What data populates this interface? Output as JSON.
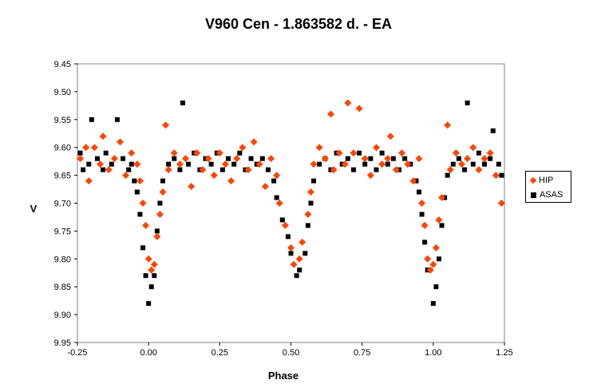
{
  "chart_data": {
    "type": "scatter",
    "title": "V960 Cen - 1.863582 d. - EA",
    "xlabel": "Phase",
    "ylabel": "V",
    "xlim": [
      -0.25,
      1.25
    ],
    "ylim": [
      9.45,
      9.95
    ],
    "y_inverted": true,
    "x_ticks": [
      "-0.25",
      "0.00",
      "0.25",
      "0.50",
      "0.75",
      "1.00",
      "1.25"
    ],
    "y_ticks": [
      "9.45",
      "9.50",
      "9.55",
      "9.60",
      "9.65",
      "9.70",
      "9.75",
      "9.80",
      "9.85",
      "9.90",
      "9.95"
    ],
    "grid": false,
    "legend_position": "right",
    "series": [
      {
        "name": "HIP",
        "marker": "diamond",
        "color": "#FF4500",
        "points": [
          [
            -0.24,
            9.62
          ],
          [
            -0.22,
            9.6
          ],
          [
            -0.21,
            9.66
          ],
          [
            -0.19,
            9.6
          ],
          [
            -0.17,
            9.63
          ],
          [
            -0.16,
            9.58
          ],
          [
            -0.14,
            9.64
          ],
          [
            -0.12,
            9.62
          ],
          [
            -0.1,
            9.59
          ],
          [
            -0.08,
            9.65
          ],
          [
            -0.06,
            9.61
          ],
          [
            -0.04,
            9.63
          ],
          [
            -0.03,
            9.66
          ],
          [
            -0.02,
            9.7
          ],
          [
            -0.01,
            9.74
          ],
          [
            0.0,
            9.8
          ],
          [
            0.01,
            9.82
          ],
          [
            0.02,
            9.81
          ],
          [
            0.03,
            9.76
          ],
          [
            0.04,
            9.72
          ],
          [
            0.05,
            9.68
          ],
          [
            0.06,
            9.56
          ],
          [
            0.07,
            9.64
          ],
          [
            0.09,
            9.61
          ],
          [
            0.11,
            9.63
          ],
          [
            0.13,
            9.62
          ],
          [
            0.15,
            9.67
          ],
          [
            0.17,
            9.61
          ],
          [
            0.19,
            9.64
          ],
          [
            0.21,
            9.62
          ],
          [
            0.23,
            9.65
          ],
          [
            0.25,
            9.61
          ],
          [
            0.27,
            9.63
          ],
          [
            0.29,
            9.66
          ],
          [
            0.31,
            9.62
          ],
          [
            0.33,
            9.6
          ],
          [
            0.35,
            9.64
          ],
          [
            0.37,
            9.59
          ],
          [
            0.39,
            9.63
          ],
          [
            0.41,
            9.67
          ],
          [
            0.43,
            9.62
          ],
          [
            0.45,
            9.65
          ],
          [
            0.46,
            9.7
          ],
          [
            0.48,
            9.74
          ],
          [
            0.5,
            9.78
          ],
          [
            0.51,
            9.81
          ],
          [
            0.53,
            9.8
          ],
          [
            0.54,
            9.77
          ],
          [
            0.56,
            9.72
          ],
          [
            0.57,
            9.68
          ],
          [
            0.58,
            9.63
          ],
          [
            0.6,
            9.6
          ],
          [
            0.62,
            9.62
          ],
          [
            0.64,
            9.54
          ],
          [
            0.65,
            9.64
          ],
          [
            0.67,
            9.61
          ],
          [
            0.69,
            9.63
          ],
          [
            0.7,
            9.52
          ],
          [
            0.72,
            9.61
          ],
          [
            0.74,
            9.53
          ],
          [
            0.76,
            9.62
          ],
          [
            0.78,
            9.65
          ],
          [
            0.8,
            9.6
          ],
          [
            0.82,
            9.63
          ],
          [
            0.84,
            9.62
          ],
          [
            0.85,
            9.58
          ],
          [
            0.87,
            9.64
          ],
          [
            0.89,
            9.61
          ],
          [
            0.91,
            9.63
          ],
          [
            0.93,
            9.66
          ],
          [
            0.95,
            9.62
          ],
          [
            0.96,
            9.7
          ],
          [
            0.97,
            9.74
          ],
          [
            0.98,
            9.8
          ],
          [
            0.99,
            9.82
          ],
          [
            1.0,
            9.81
          ],
          [
            1.01,
            9.78
          ],
          [
            1.02,
            9.73
          ],
          [
            1.03,
            9.69
          ],
          [
            1.05,
            9.56
          ],
          [
            1.06,
            9.64
          ],
          [
            1.08,
            9.61
          ],
          [
            1.1,
            9.63
          ],
          [
            1.12,
            9.62
          ],
          [
            1.14,
            9.6
          ],
          [
            1.16,
            9.64
          ],
          [
            1.18,
            9.62
          ],
          [
            1.2,
            9.61
          ],
          [
            1.22,
            9.65
          ],
          [
            1.24,
            9.7
          ]
        ]
      },
      {
        "name": "ASAS",
        "marker": "square",
        "color": "#000000",
        "points": [
          [
            -0.24,
            9.61
          ],
          [
            -0.23,
            9.64
          ],
          [
            -0.21,
            9.63
          ],
          [
            -0.2,
            9.55
          ],
          [
            -0.18,
            9.62
          ],
          [
            -0.16,
            9.64
          ],
          [
            -0.15,
            9.61
          ],
          [
            -0.13,
            9.63
          ],
          [
            -0.11,
            9.55
          ],
          [
            -0.09,
            9.62
          ],
          [
            -0.07,
            9.64
          ],
          [
            -0.06,
            9.63
          ],
          [
            -0.05,
            9.66
          ],
          [
            -0.04,
            9.68
          ],
          [
            -0.03,
            9.72
          ],
          [
            -0.02,
            9.78
          ],
          [
            -0.01,
            9.83
          ],
          [
            0.0,
            9.88
          ],
          [
            0.01,
            9.85
          ],
          [
            0.02,
            9.83
          ],
          [
            0.03,
            9.75
          ],
          [
            0.04,
            9.7
          ],
          [
            0.05,
            9.66
          ],
          [
            0.07,
            9.63
          ],
          [
            0.09,
            9.62
          ],
          [
            0.11,
            9.64
          ],
          [
            0.12,
            9.52
          ],
          [
            0.14,
            9.63
          ],
          [
            0.16,
            9.61
          ],
          [
            0.18,
            9.64
          ],
          [
            0.2,
            9.62
          ],
          [
            0.22,
            9.63
          ],
          [
            0.24,
            9.61
          ],
          [
            0.26,
            9.64
          ],
          [
            0.28,
            9.62
          ],
          [
            0.3,
            9.63
          ],
          [
            0.32,
            9.61
          ],
          [
            0.34,
            9.64
          ],
          [
            0.36,
            9.62
          ],
          [
            0.38,
            9.63
          ],
          [
            0.4,
            9.62
          ],
          [
            0.42,
            9.64
          ],
          [
            0.44,
            9.66
          ],
          [
            0.45,
            9.69
          ],
          [
            0.47,
            9.73
          ],
          [
            0.49,
            9.76
          ],
          [
            0.5,
            9.79
          ],
          [
            0.52,
            9.83
          ],
          [
            0.53,
            9.82
          ],
          [
            0.55,
            9.79
          ],
          [
            0.56,
            9.74
          ],
          [
            0.57,
            9.7
          ],
          [
            0.58,
            9.66
          ],
          [
            0.6,
            9.63
          ],
          [
            0.62,
            9.62
          ],
          [
            0.64,
            9.64
          ],
          [
            0.66,
            9.61
          ],
          [
            0.68,
            9.63
          ],
          [
            0.7,
            9.62
          ],
          [
            0.72,
            9.64
          ],
          [
            0.74,
            9.61
          ],
          [
            0.76,
            9.63
          ],
          [
            0.78,
            9.62
          ],
          [
            0.8,
            9.64
          ],
          [
            0.82,
            9.61
          ],
          [
            0.84,
            9.63
          ],
          [
            0.86,
            9.62
          ],
          [
            0.88,
            9.64
          ],
          [
            0.9,
            9.62
          ],
          [
            0.92,
            9.63
          ],
          [
            0.94,
            9.66
          ],
          [
            0.95,
            9.68
          ],
          [
            0.96,
            9.72
          ],
          [
            0.97,
            9.77
          ],
          [
            0.98,
            9.82
          ],
          [
            1.0,
            9.88
          ],
          [
            1.01,
            9.85
          ],
          [
            1.02,
            9.8
          ],
          [
            1.03,
            9.74
          ],
          [
            1.04,
            9.69
          ],
          [
            1.05,
            9.65
          ],
          [
            1.07,
            9.63
          ],
          [
            1.09,
            9.62
          ],
          [
            1.11,
            9.64
          ],
          [
            1.12,
            9.52
          ],
          [
            1.14,
            9.63
          ],
          [
            1.16,
            9.61
          ],
          [
            1.18,
            9.63
          ],
          [
            1.2,
            9.62
          ],
          [
            1.21,
            9.57
          ],
          [
            1.23,
            9.63
          ],
          [
            1.24,
            9.65
          ]
        ]
      }
    ]
  }
}
